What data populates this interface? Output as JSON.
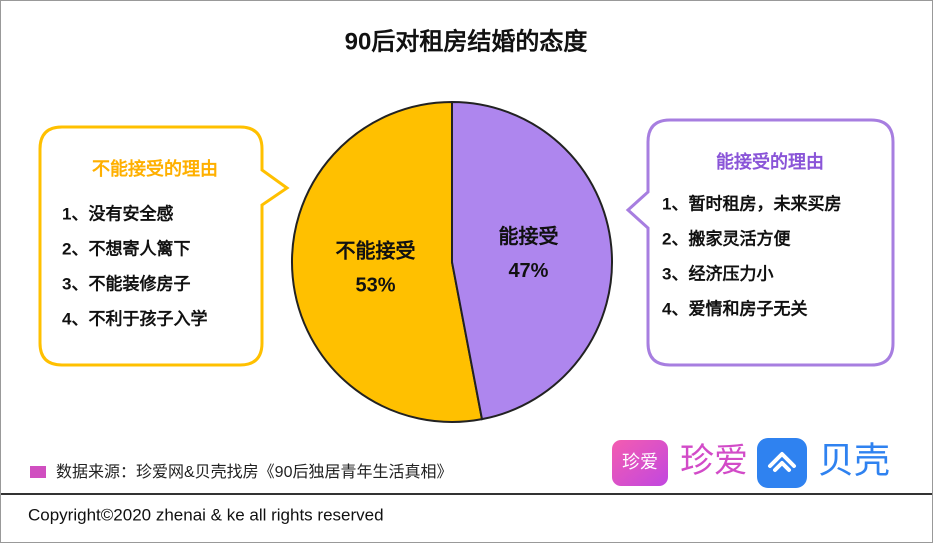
{
  "chart_data": {
    "type": "pie",
    "title": "90后对租房结婚的态度",
    "categories": [
      "不能接受",
      "能接受"
    ],
    "values": [
      53,
      47
    ],
    "value_labels": [
      "53%",
      "47%"
    ],
    "colors": [
      "#FFC000",
      "#AE86EE"
    ]
  },
  "left_box": {
    "title": "不能接受的理由",
    "items": [
      "1、没有安全感",
      "2、不想寄人篱下",
      "3、不能装修房子",
      "4、不利于孩子入学"
    ]
  },
  "right_box": {
    "title": "能接受的理由",
    "items": [
      "1、暂时租房，未来买房",
      "2、搬家灵活方便",
      "3、经济压力小",
      "4、爱情和房子无关"
    ]
  },
  "source": "数据来源：珍爱网&贝壳找房《90后独居青年生活真相》",
  "logos": {
    "zhenai_icon": "珍爱",
    "zhenai": "珍爱",
    "beike": "贝壳"
  },
  "copyright": "Copyright©2020 zhenai & ke all rights reserved"
}
